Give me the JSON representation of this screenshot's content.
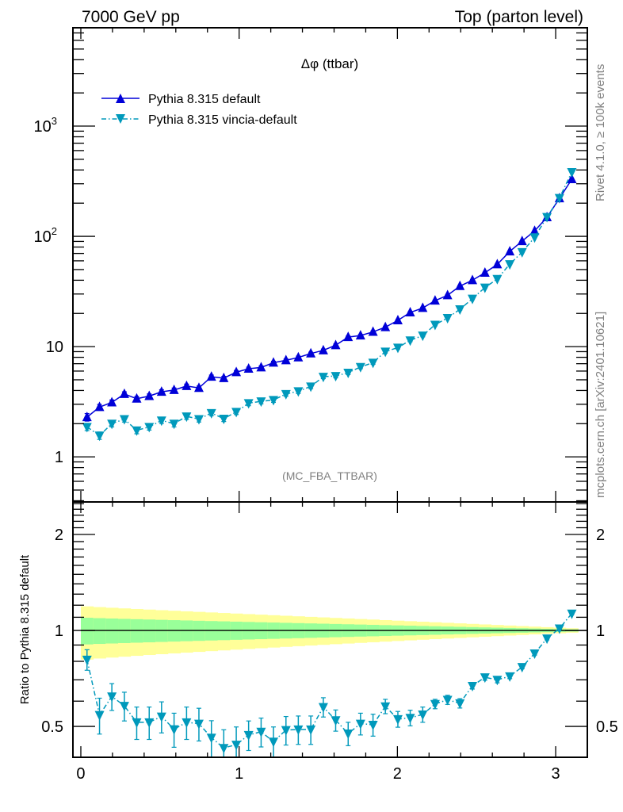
{
  "header": {
    "left_title": "7000 GeV pp",
    "right_title": "Top (parton level)"
  },
  "side_text": {
    "upper": "Rivet 4.1.0, ≥ 100k events",
    "lower": "mcplots.cern.ch [arXiv:2401.10621]"
  },
  "chart_data": [
    {
      "type": "line",
      "panel": "main",
      "title": "Δφ (ttbar)",
      "annotation": "(MC_FBA_TTBAR)",
      "xlabel": "",
      "ylabel": "",
      "yscale": "log",
      "xlim": [
        -0.05,
        3.2
      ],
      "ylim": [
        0.39,
        7800
      ],
      "x_ticks": [
        0,
        1,
        2,
        3
      ],
      "x_tick_labels": [
        "0",
        "1",
        "2",
        "3"
      ],
      "y_ticks": [
        1,
        10,
        100,
        1000
      ],
      "y_tick_labels": [
        "1",
        "10",
        "10^2",
        "10^3"
      ],
      "legend_position": "top-left",
      "x": [
        0.039,
        0.118,
        0.196,
        0.275,
        0.353,
        0.432,
        0.51,
        0.589,
        0.668,
        0.746,
        0.825,
        0.903,
        0.982,
        1.06,
        1.139,
        1.217,
        1.296,
        1.374,
        1.453,
        1.532,
        1.61,
        1.689,
        1.767,
        1.846,
        1.924,
        2.003,
        2.081,
        2.16,
        2.238,
        2.317,
        2.395,
        2.474,
        2.553,
        2.631,
        2.71,
        2.788,
        2.867,
        2.945,
        3.024,
        3.102
      ],
      "series": [
        {
          "name": "Pythia 8.315 default",
          "color": "#0000d8",
          "marker": "triangle-up",
          "linestyle": "solid",
          "values": [
            2.29,
            2.83,
            3.12,
            3.72,
            3.37,
            3.56,
            3.89,
            4.04,
            4.39,
            4.22,
            5.33,
            5.18,
            5.86,
            6.3,
            6.47,
            7.15,
            7.51,
            7.97,
            8.66,
            9.25,
            10.3,
            12.2,
            12.6,
            13.6,
            15.0,
            17.3,
            20.4,
            22.4,
            26.1,
            29.2,
            35.4,
            40.0,
            46.7,
            55.7,
            73.0,
            90.5,
            112,
            149,
            221,
            330
          ],
          "errors": [
            0.18,
            0.16,
            0.16,
            0.17,
            0.16,
            0.16,
            0.17,
            0.17,
            0.18,
            0.17,
            0.19,
            0.19,
            0.2,
            0.21,
            0.21,
            0.22,
            0.22,
            0.23,
            0.24,
            0.25,
            0.26,
            0.28,
            0.29,
            0.3,
            0.31,
            0.34,
            0.36,
            0.38,
            0.41,
            0.44,
            0.48,
            0.51,
            0.56,
            0.61,
            0.7,
            0.78,
            0.88,
            1.0,
            1.2,
            1.5
          ]
        },
        {
          "name": "Pythia 8.315 vincia-default",
          "color": "#0099bb",
          "marker": "triangle-down",
          "linestyle": "dash-dot",
          "values": [
            1.87,
            1.56,
            2.0,
            2.2,
            1.74,
            1.87,
            2.14,
            2.0,
            2.33,
            2.2,
            2.5,
            2.22,
            2.56,
            3.07,
            3.19,
            3.28,
            3.72,
            3.94,
            4.35,
            5.33,
            5.42,
            5.8,
            6.54,
            7.15,
            9.01,
            9.8,
            11.4,
            12.6,
            15.8,
            18.2,
            21.8,
            27.2,
            34.3,
            41.1,
            56.0,
            72.0,
            98.0,
            150,
            223,
            383
          ],
          "errors": [
            0.14,
            0.12,
            0.13,
            0.13,
            0.12,
            0.12,
            0.13,
            0.13,
            0.14,
            0.13,
            0.14,
            0.13,
            0.14,
            0.16,
            0.16,
            0.16,
            0.17,
            0.18,
            0.19,
            0.21,
            0.21,
            0.22,
            0.23,
            0.24,
            0.27,
            0.29,
            0.31,
            0.33,
            0.37,
            0.39,
            0.43,
            0.48,
            0.54,
            0.6,
            0.7,
            0.8,
            0.95,
            1.2,
            1.5,
            2.0
          ]
        }
      ]
    },
    {
      "type": "line",
      "panel": "ratio",
      "ylabel": "Ratio to Pythia 8.315 default",
      "yscale": "log",
      "xlim": [
        -0.05,
        3.2
      ],
      "ylim": [
        0.4,
        2.53
      ],
      "x_ticks": [
        0,
        1,
        2,
        3
      ],
      "x_tick_labels": [
        "0",
        "1",
        "2",
        "3"
      ],
      "y_ticks": [
        0.5,
        1,
        2
      ],
      "y_tick_labels": [
        "0.5",
        "1",
        "2"
      ],
      "reference_line": 1,
      "band": {
        "inner_color": "#99ff99",
        "outer_color": "#ffff99",
        "inner_halfwidth_start": 0.096,
        "inner_halfwidth_end": 0.008,
        "outer_halfwidth_start": 0.19,
        "outer_halfwidth_end": 0.016
      },
      "series": [
        {
          "name": "Pythia 8.315 vincia-default",
          "color": "#0099bb",
          "marker": "triangle-down",
          "linestyle": "dash-dot",
          "values": [
            0.81,
            0.543,
            0.621,
            0.58,
            0.515,
            0.515,
            0.537,
            0.49,
            0.515,
            0.51,
            0.461,
            0.428,
            0.438,
            0.47,
            0.481,
            0.448,
            0.487,
            0.489,
            0.489,
            0.575,
            0.523,
            0.475,
            0.51,
            0.506,
            0.578,
            0.527,
            0.532,
            0.545,
            0.588,
            0.606,
            0.591,
            0.67,
            0.713,
            0.7,
            0.718,
            0.768,
            0.847,
            0.944,
            1.015,
            1.13
          ],
          "errors": [
            0.06,
            0.07,
            0.06,
            0.06,
            0.06,
            0.06,
            0.06,
            0.06,
            0.06,
            0.06,
            0.06,
            0.06,
            0.06,
            0.05,
            0.05,
            0.05,
            0.05,
            0.05,
            0.05,
            0.04,
            0.04,
            0.04,
            0.04,
            0.04,
            0.03,
            0.03,
            0.03,
            0.03,
            0.02,
            0.02,
            0.02,
            0.015,
            0.015,
            0.015,
            0.012,
            0.01,
            0.01,
            0.01,
            0.008,
            0.008
          ]
        }
      ]
    }
  ]
}
